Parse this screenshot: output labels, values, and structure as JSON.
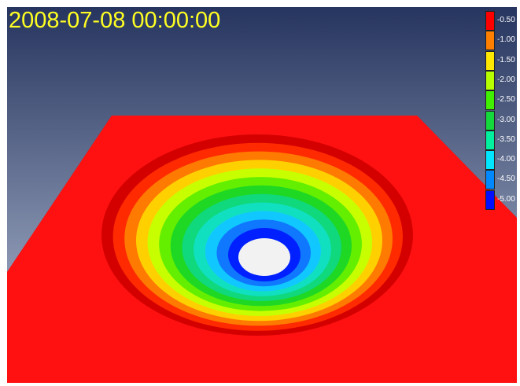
{
  "viewer": {
    "timestamp": "2008-07-08 00:00:00",
    "background_top": "#26355f",
    "background_bottom": "#b6c1d6"
  },
  "legend": {
    "items": [
      {
        "label": "-0.50",
        "color": "#ff0000"
      },
      {
        "label": "-1.00",
        "color": "#ff7f00"
      },
      {
        "label": "-1.50",
        "color": "#ffe800"
      },
      {
        "label": "-2.00",
        "color": "#b6ff00"
      },
      {
        "label": "-2.50",
        "color": "#40f000"
      },
      {
        "label": "-3.00",
        "color": "#14d83c"
      },
      {
        "label": "-3.50",
        "color": "#00f0a0"
      },
      {
        "label": "-4.00",
        "color": "#00e6ff"
      },
      {
        "label": "-4.50",
        "color": "#0088ff"
      },
      {
        "label": "-5.00",
        "color": "#0010ff"
      }
    ]
  },
  "surface": {
    "plane_color": "#ff1111",
    "plane_edge_color": "#b30000",
    "well_ring_colors": [
      "#d40000",
      "#ff2a00",
      "#ff7a00",
      "#ffd000",
      "#c8ff00",
      "#64ee00",
      "#1ed824",
      "#10d87c",
      "#10e0c0",
      "#10c8ff",
      "#1078ff",
      "#0020ff"
    ],
    "center_hole_color": "#f2f2f2"
  }
}
